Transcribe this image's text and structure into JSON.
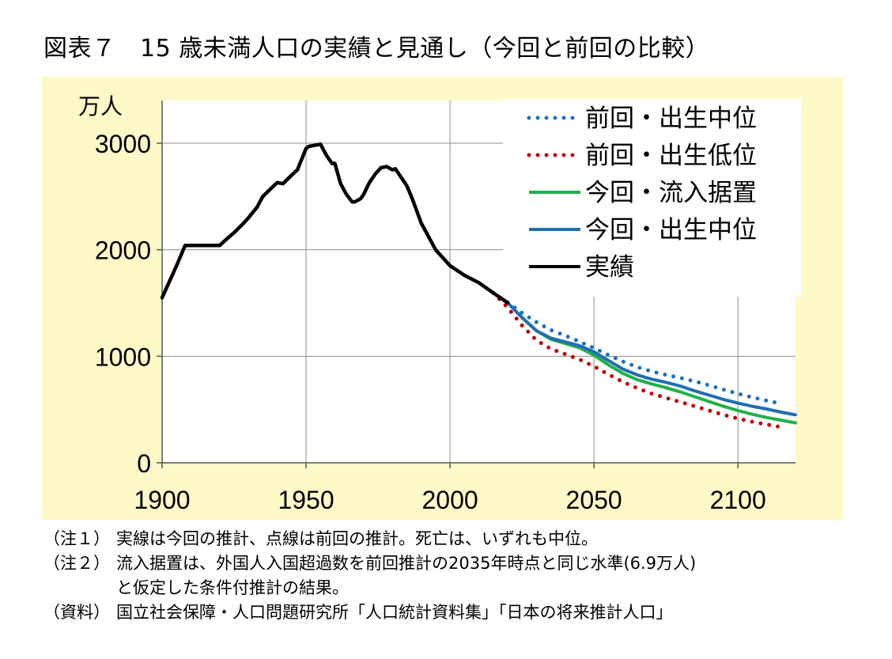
{
  "title": "図表７　15 歳未満人口の実績と見通し（今回と前回の比較）",
  "chart_data": {
    "type": "line",
    "yunit": "万人",
    "xlim": [
      1900,
      2120
    ],
    "ylim": [
      0,
      3000
    ],
    "x_ticks": [
      1900,
      1950,
      2000,
      2050,
      2100
    ],
    "y_ticks": [
      0,
      1000,
      2000,
      3000
    ],
    "grid": true,
    "legend_position": "top-right",
    "series": [
      {
        "name": "前回・出生中位",
        "color": "#1f6fbf",
        "style": "dotted",
        "x": [
          2015,
          2020,
          2025,
          2030,
          2035,
          2040,
          2045,
          2050,
          2055,
          2060,
          2065,
          2070,
          2075,
          2080,
          2085,
          2090,
          2095,
          2100,
          2105,
          2110,
          2115
        ],
        "y": [
          1595,
          1507,
          1407,
          1321,
          1246,
          1194,
          1138,
          1077,
          1012,
          951,
          898,
          858,
          826,
          797,
          764,
          727,
          687,
          649,
          614,
          584,
          555
        ]
      },
      {
        "name": "前回・出生低位",
        "color": "#c00000",
        "style": "dotted",
        "x": [
          2015,
          2020,
          2025,
          2030,
          2035,
          2040,
          2045,
          2050,
          2055,
          2060,
          2065,
          2070,
          2075,
          2080,
          2085,
          2090,
          2095,
          2100,
          2105,
          2110,
          2115
        ],
        "y": [
          1595,
          1457,
          1290,
          1150,
          1070,
          1020,
          970,
          905,
          830,
          760,
          700,
          650,
          610,
          570,
          530,
          490,
          450,
          415,
          385,
          360,
          335
        ]
      },
      {
        "name": "今回・流入据置",
        "color": "#21b04b",
        "style": "solid",
        "x": [
          2020,
          2025,
          2030,
          2035,
          2040,
          2045,
          2050,
          2055,
          2060,
          2065,
          2070,
          2075,
          2080,
          2085,
          2090,
          2095,
          2100,
          2105,
          2110,
          2115,
          2120
        ],
        "y": [
          1503,
          1363,
          1240,
          1160,
          1120,
          1080,
          1010,
          920,
          840,
          780,
          740,
          705,
          665,
          620,
          575,
          530,
          490,
          455,
          425,
          400,
          375
        ]
      },
      {
        "name": "今回・出生中位",
        "color": "#1f6fb0",
        "style": "solid",
        "x": [
          2020,
          2025,
          2030,
          2035,
          2040,
          2045,
          2050,
          2055,
          2060,
          2065,
          2070,
          2075,
          2080,
          2085,
          2090,
          2095,
          2100,
          2105,
          2110,
          2115,
          2120
        ],
        "y": [
          1503,
          1363,
          1240,
          1170,
          1135,
          1100,
          1040,
          960,
          880,
          825,
          785,
          755,
          720,
          675,
          635,
          595,
          560,
          530,
          505,
          475,
          450
        ]
      },
      {
        "name": "実績",
        "color": "#000000",
        "style": "solid",
        "x": [
          1900,
          1905,
          1908,
          1910,
          1915,
          1920,
          1922,
          1925,
          1928,
          1930,
          1933,
          1935,
          1938,
          1940,
          1942,
          1945,
          1947,
          1950,
          1951,
          1953,
          1955,
          1957,
          1959,
          1960,
          1962,
          1964,
          1966,
          1967,
          1969,
          1970,
          1972,
          1974,
          1976,
          1978,
          1980,
          1981,
          1983,
          1985,
          1987,
          1990,
          1995,
          2000,
          2005,
          2010,
          2015,
          2020
        ],
        "y": [
          1550,
          1850,
          2040,
          2040,
          2040,
          2040,
          2090,
          2160,
          2240,
          2300,
          2400,
          2500,
          2580,
          2630,
          2620,
          2700,
          2750,
          2950,
          2970,
          2980,
          2990,
          2890,
          2810,
          2810,
          2620,
          2520,
          2450,
          2450,
          2480,
          2520,
          2630,
          2710,
          2770,
          2780,
          2750,
          2760,
          2680,
          2600,
          2470,
          2250,
          2000,
          1850,
          1760,
          1690,
          1595,
          1503
        ]
      }
    ]
  },
  "notes": [
    {
      "label": "（注１）",
      "text": "実線は今回の推計、点線は前回の推計。死亡は、いずれも中位。"
    },
    {
      "label": "（注２）",
      "text": "流入据置は、外国人入国超過数を前回推計の2035年時点と同じ水準(6.9万人)",
      "cont": "と仮定した条件付推計の結果。"
    },
    {
      "label": "（資料）",
      "text": "国立社会保障・人口問題研究所「人口統計資料集」「日本の将来推計人口」"
    }
  ]
}
